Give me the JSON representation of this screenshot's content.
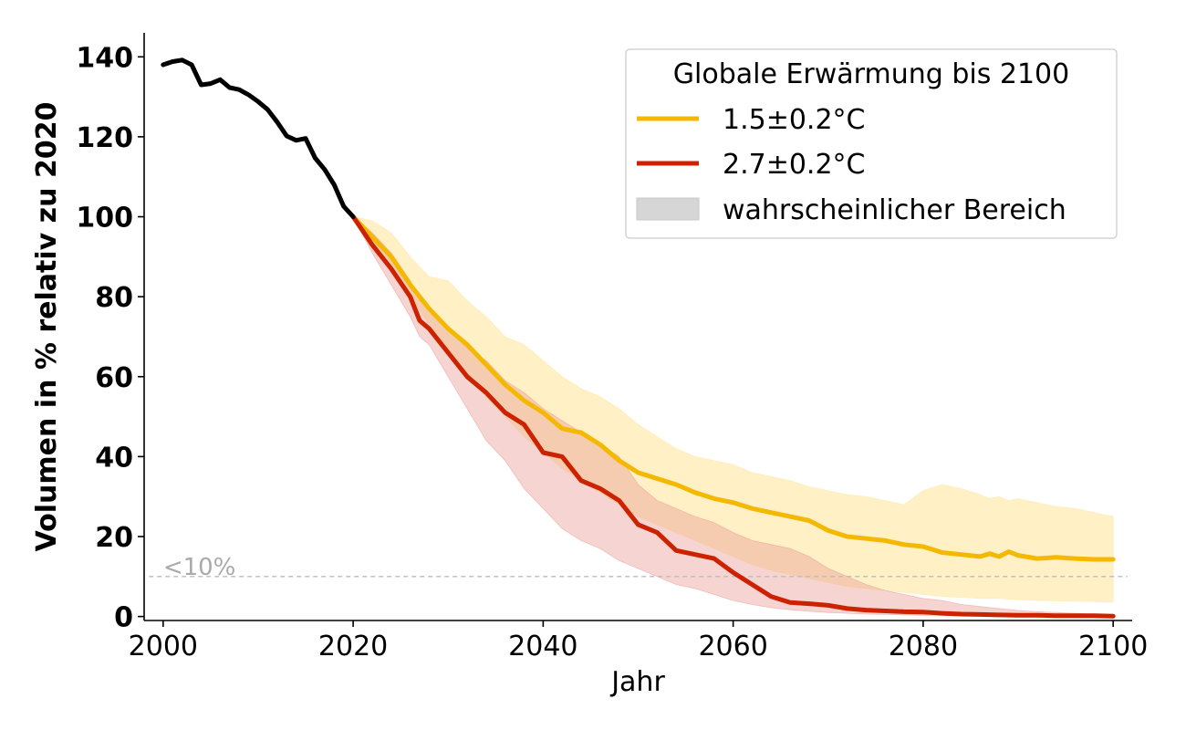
{
  "chart_data": {
    "type": "line",
    "xlabel": "Jahr",
    "ylabel": "Volumen in % relativ zu 2020",
    "xlim": [
      1998,
      2102
    ],
    "ylim": [
      -1,
      146
    ],
    "xticks": [
      2000,
      2020,
      2040,
      2060,
      2080,
      2100
    ],
    "yticks": [
      0,
      20,
      40,
      60,
      80,
      100,
      120,
      140
    ],
    "grid": false,
    "legend": {
      "title": "Globale Erwärmung bis 2100",
      "placement": "top-right",
      "entries": [
        "1.5±0.2°C",
        "2.7±0.2°C",
        "wahrscheinlicher Bereich"
      ]
    },
    "threshold": {
      "y": 10,
      "label": "<10%"
    },
    "colors": {
      "historical": "#000000",
      "s15": "#f5b800",
      "s27": "#cc2200",
      "s15_band": "#ffe8a6",
      "s27_band": "#eba09a",
      "legend_band": "#d6d6d6"
    },
    "historical": {
      "x": [
        2000,
        2001,
        2002,
        2003,
        2004,
        2005,
        2006,
        2007,
        2008,
        2009,
        2010,
        2011,
        2012,
        2013,
        2014,
        2015,
        2016,
        2017,
        2018,
        2019,
        2020
      ],
      "y": [
        138,
        138.8,
        139.2,
        138,
        133,
        133.3,
        134.3,
        132.3,
        131.8,
        130.5,
        128.8,
        126.8,
        123.7,
        120.2,
        119.1,
        119.6,
        114.7,
        111.8,
        108,
        102.6,
        100
      ]
    },
    "series": [
      {
        "name": "1.5±0.2°C",
        "x": [
          2020,
          2022,
          2024,
          2026,
          2028,
          2030,
          2032,
          2034,
          2036,
          2038,
          2040,
          2042,
          2044,
          2046,
          2048,
          2050,
          2052,
          2054,
          2056,
          2058,
          2060,
          2062,
          2064,
          2066,
          2068,
          2070,
          2072,
          2074,
          2076,
          2078,
          2080,
          2082,
          2084,
          2086,
          2087,
          2088,
          2089,
          2090,
          2092,
          2094,
          2096,
          2098,
          2100
        ],
        "y": [
          100,
          95,
          90,
          83,
          77,
          72,
          68,
          63,
          58,
          54,
          51,
          47,
          46,
          43,
          39,
          36,
          34.5,
          33,
          31,
          29.5,
          28.5,
          27,
          26,
          25,
          24,
          21.5,
          20,
          19.5,
          19,
          18,
          17.5,
          16,
          15.5,
          15,
          15.7,
          15,
          16.2,
          15.3,
          14.5,
          14.8,
          14.5,
          14.3,
          14.3
        ],
        "low": [
          100,
          93,
          87,
          80,
          73,
          67,
          61,
          55,
          50,
          45,
          41,
          37,
          34,
          31,
          28,
          25,
          23,
          21,
          19,
          17,
          15,
          13,
          11.5,
          10.5,
          9.5,
          8.5,
          7.5,
          7,
          6.5,
          6,
          5.5,
          5,
          4.8,
          4.5,
          4.5,
          4.5,
          4.3,
          4.2,
          4,
          3.9,
          3.8,
          3.7,
          3.6
        ],
        "high": [
          100,
          99,
          96,
          90,
          85,
          84,
          79,
          75,
          70,
          68,
          64,
          60,
          57,
          55,
          52,
          48,
          45,
          42,
          40,
          39,
          38,
          36,
          35,
          34,
          32.5,
          31.5,
          30.5,
          30,
          29,
          28,
          31.5,
          33,
          32,
          30.5,
          29.5,
          30,
          29,
          29.5,
          28.5,
          27.5,
          27,
          26,
          25
        ]
      },
      {
        "name": "2.7±0.2°C",
        "x": [
          2020,
          2022,
          2024,
          2026,
          2027,
          2028,
          2030,
          2032,
          2034,
          2036,
          2038,
          2040,
          2042,
          2044,
          2046,
          2048,
          2050,
          2052,
          2054,
          2056,
          2058,
          2060,
          2062,
          2064,
          2066,
          2068,
          2070,
          2072,
          2074,
          2076,
          2078,
          2080,
          2082,
          2084,
          2086,
          2088,
          2090,
          2092,
          2094,
          2096,
          2098,
          2100
        ],
        "y": [
          100,
          93,
          87,
          80,
          74,
          72,
          66,
          60,
          56,
          51,
          48,
          41,
          40,
          34,
          32,
          29,
          23,
          21,
          16.5,
          15.5,
          14.5,
          11,
          8,
          5,
          3.5,
          3.2,
          2.8,
          2,
          1.6,
          1.4,
          1.2,
          1.1,
          0.8,
          0.6,
          0.5,
          0.4,
          0.3,
          0.3,
          0.2,
          0.2,
          0.2,
          0.1
        ],
        "low": [
          100,
          91,
          83,
          75,
          70,
          68,
          60,
          52,
          44,
          39,
          32,
          27,
          22,
          19,
          17,
          14,
          12,
          10,
          8,
          7,
          5.5,
          4,
          3,
          2.2,
          1.7,
          1.3,
          1,
          0.8,
          0.6,
          0.5,
          0.4,
          0.3,
          0.25,
          0.2,
          0.15,
          0.1,
          0.1,
          0.05,
          0.05,
          0,
          0,
          0
        ],
        "high": [
          100,
          96,
          91,
          84,
          79,
          77,
          72,
          67,
          64,
          59,
          56,
          52,
          49,
          46,
          43,
          40,
          33,
          29,
          27,
          25,
          23.5,
          21,
          19,
          18,
          17,
          15,
          12,
          10,
          8,
          6.5,
          5.5,
          4.5,
          4,
          3,
          2.5,
          2,
          1.5,
          1.2,
          1,
          0.8,
          0.6,
          0.5
        ]
      }
    ]
  }
}
